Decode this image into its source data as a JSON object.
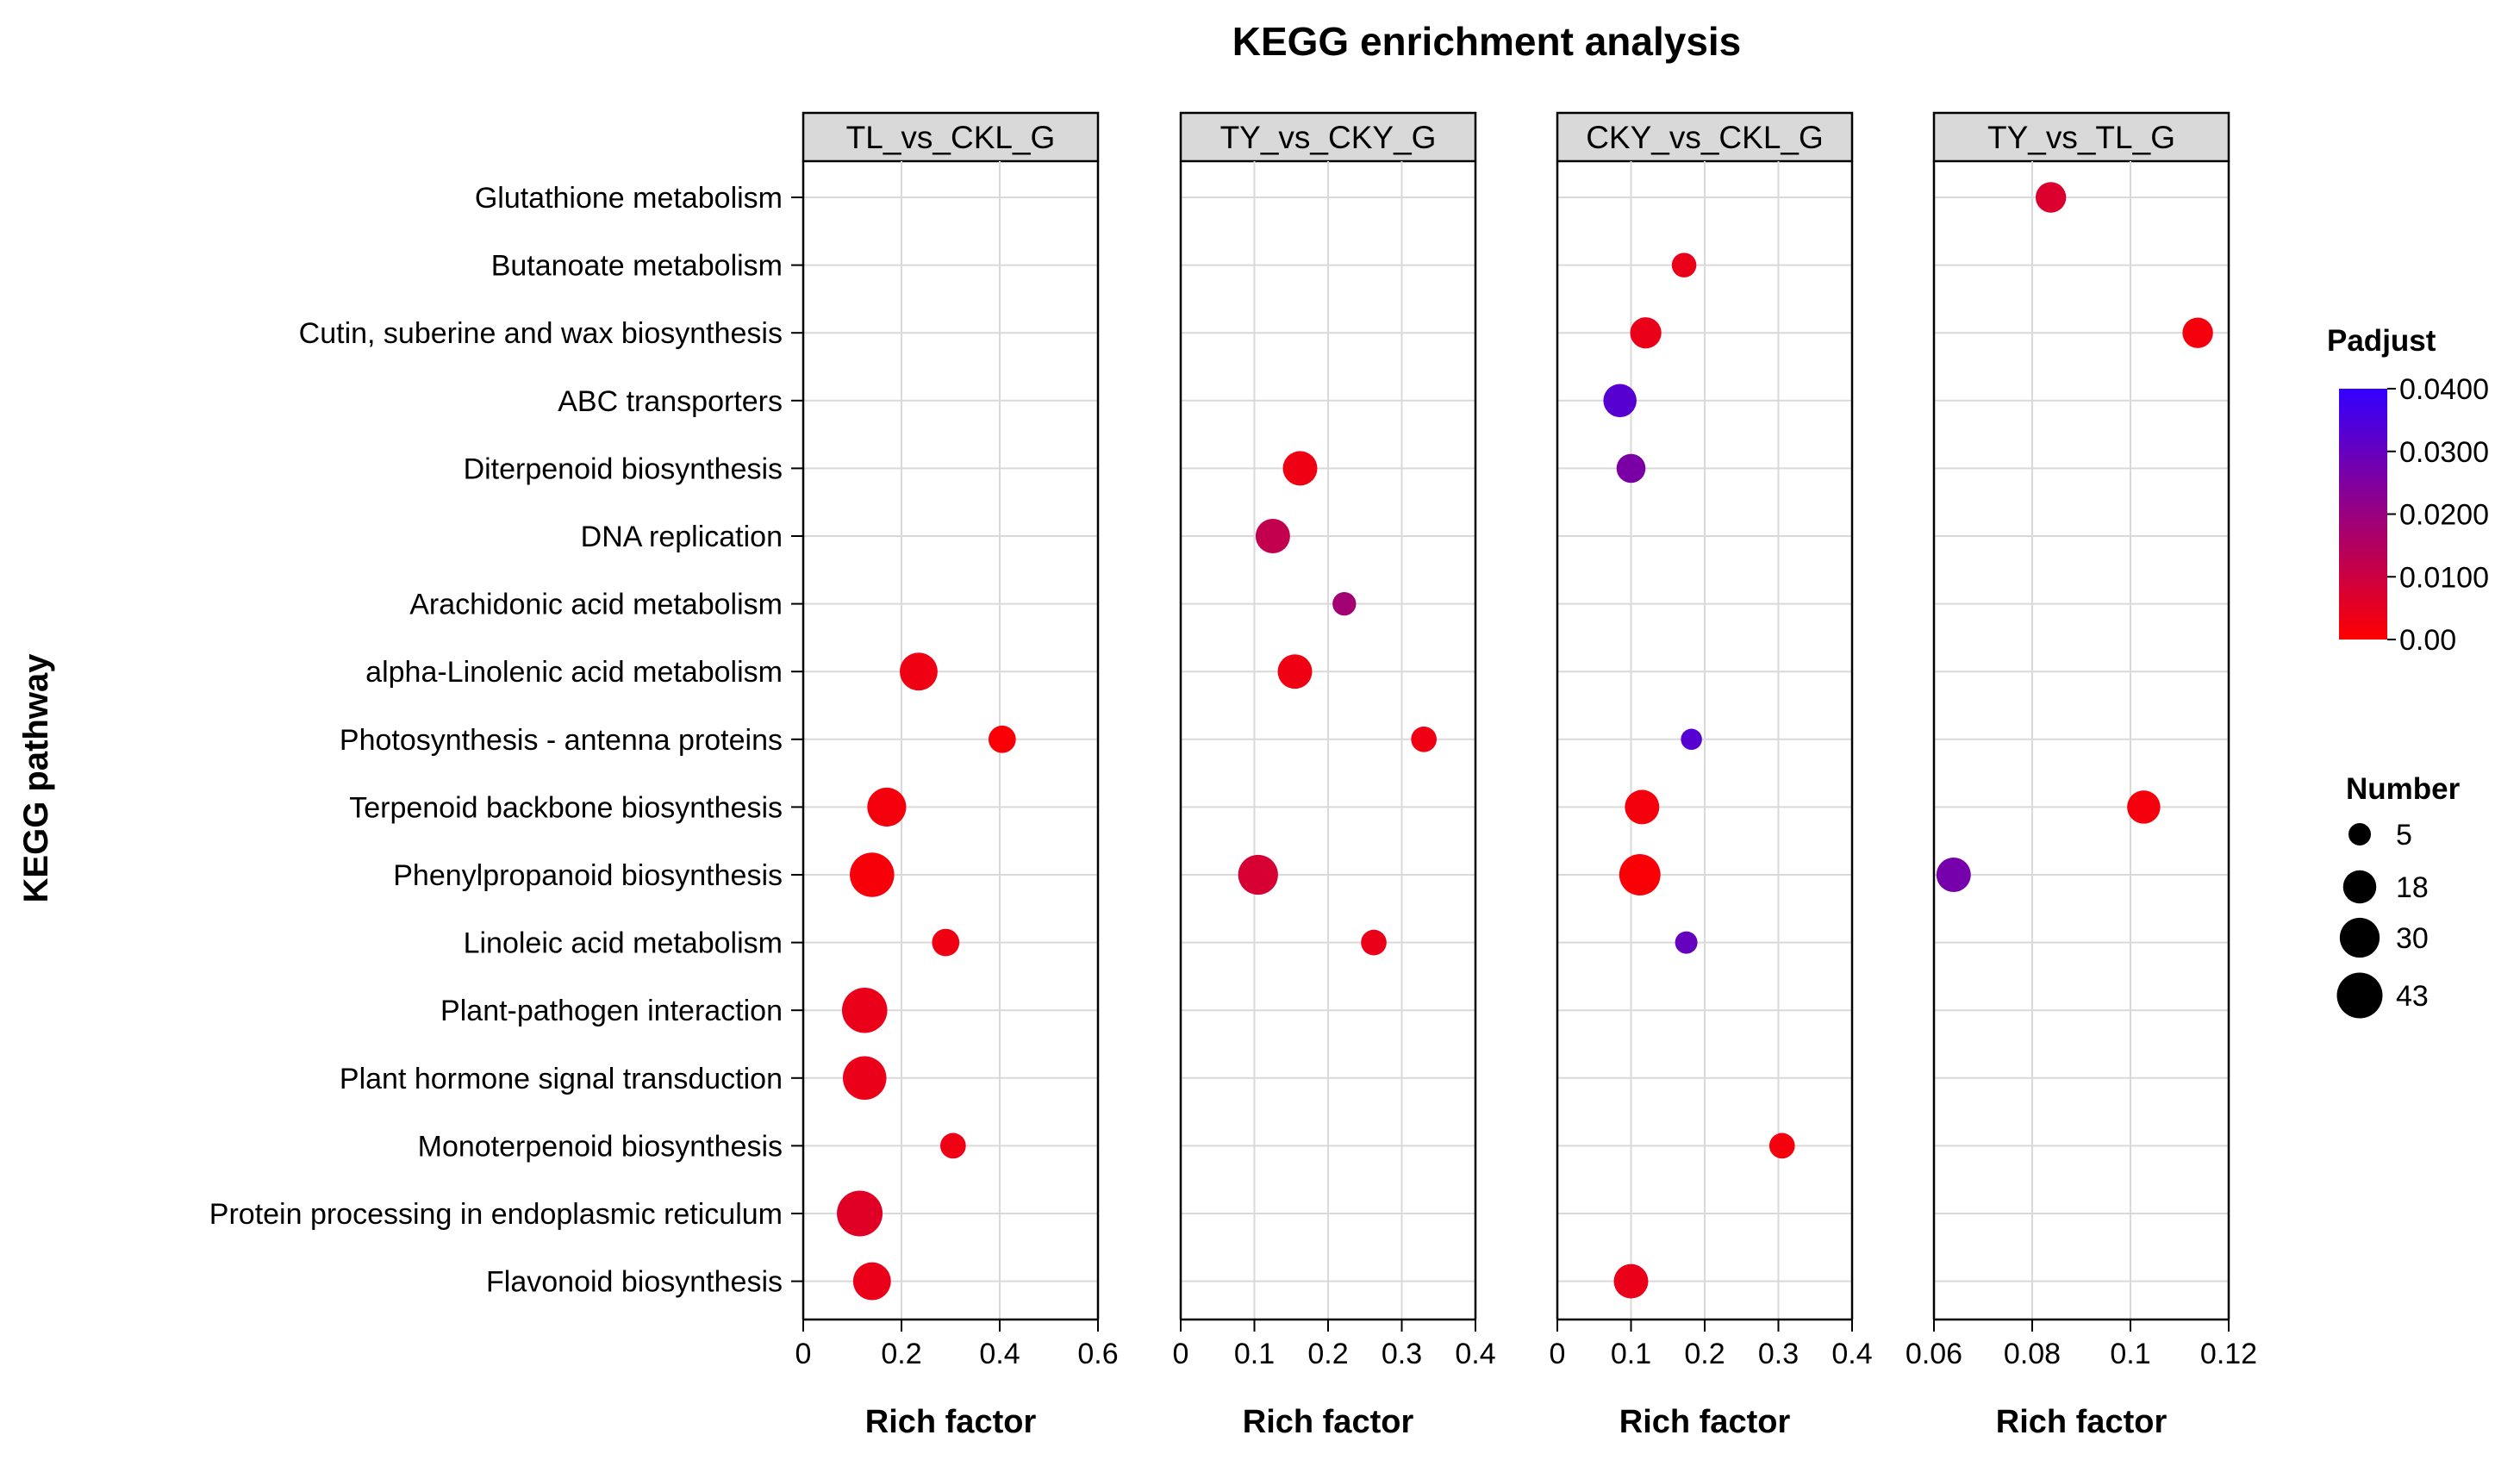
{
  "chart_data": {
    "type": "scatter",
    "title": "KEGG enrichment analysis",
    "ylabel": "KEGG pathway",
    "categories": [
      "Glutathione metabolism",
      "Butanoate metabolism",
      "Cutin, suberine and wax biosynthesis",
      "ABC transporters",
      "Diterpenoid biosynthesis",
      "DNA replication",
      "Arachidonic acid metabolism",
      "alpha-Linolenic acid metabolism",
      "Photosynthesis - antenna proteins",
      "Terpenoid backbone biosynthesis",
      "Phenylpropanoid biosynthesis",
      "Linoleic acid metabolism",
      "Plant-pathogen interaction",
      "Plant hormone signal transduction",
      "Monoterpenoid biosynthesis",
      "Protein processing in endoplasmic reticulum",
      "Flavonoid biosynthesis"
    ],
    "panels": [
      {
        "name": "TL_vs_CKL_G",
        "xlabel": "Rich factor",
        "xlim": [
          0,
          0.6
        ],
        "ticks": [
          0,
          0.2,
          0.4,
          0.6
        ],
        "tick_labels": [
          "0",
          "0.2",
          "0.4",
          "0.6"
        ],
        "points": [
          {
            "pathway": "alpha-Linolenic acid metabolism",
            "x": 0.235,
            "number": 26,
            "padjust": 0.003
          },
          {
            "pathway": "Photosynthesis - antenna proteins",
            "x": 0.405,
            "number": 10,
            "padjust": 0.001
          },
          {
            "pathway": "Terpenoid backbone biosynthesis",
            "x": 0.17,
            "number": 28,
            "padjust": 0.002
          },
          {
            "pathway": "Phenylpropanoid biosynthesis",
            "x": 0.14,
            "number": 40,
            "padjust": 0.0015
          },
          {
            "pathway": "Linoleic acid metabolism",
            "x": 0.29,
            "number": 10,
            "padjust": 0.003
          },
          {
            "pathway": "Plant-pathogen interaction",
            "x": 0.125,
            "number": 42,
            "padjust": 0.004
          },
          {
            "pathway": "Plant hormone signal transduction",
            "x": 0.125,
            "number": 38,
            "padjust": 0.004
          },
          {
            "pathway": "Monoterpenoid biosynthesis",
            "x": 0.305,
            "number": 8,
            "padjust": 0.003
          },
          {
            "pathway": "Protein processing in endoplasmic reticulum",
            "x": 0.115,
            "number": 43,
            "padjust": 0.006
          },
          {
            "pathway": "Flavonoid biosynthesis",
            "x": 0.14,
            "number": 26,
            "padjust": 0.004
          }
        ]
      },
      {
        "name": "TY_vs_CKY_G",
        "xlabel": "Rich factor",
        "xlim": [
          0,
          0.4
        ],
        "ticks": [
          0,
          0.1,
          0.2,
          0.3,
          0.4
        ],
        "tick_labels": [
          "0",
          "0.1",
          "0.2",
          "0.3",
          "0.4"
        ],
        "points": [
          {
            "pathway": "Diterpenoid biosynthesis",
            "x": 0.162,
            "number": 20,
            "padjust": 0.003
          },
          {
            "pathway": "DNA replication",
            "x": 0.125,
            "number": 20,
            "padjust": 0.012
          },
          {
            "pathway": "Arachidonic acid metabolism",
            "x": 0.222,
            "number": 6,
            "padjust": 0.018
          },
          {
            "pathway": "alpha-Linolenic acid metabolism",
            "x": 0.155,
            "number": 20,
            "padjust": 0.003
          },
          {
            "pathway": "Photosynthesis - antenna proteins",
            "x": 0.33,
            "number": 8,
            "padjust": 0.003
          },
          {
            "pathway": "Phenylpropanoid biosynthesis",
            "x": 0.105,
            "number": 30,
            "padjust": 0.008
          },
          {
            "pathway": "Linoleic acid metabolism",
            "x": 0.262,
            "number": 8,
            "padjust": 0.004
          }
        ]
      },
      {
        "name": "CKY_vs_CKL_G",
        "xlabel": "Rich factor",
        "xlim": [
          0,
          0.4
        ],
        "ticks": [
          0,
          0.1,
          0.2,
          0.3,
          0.4
        ],
        "tick_labels": [
          "0",
          "0.1",
          "0.2",
          "0.3",
          "0.4"
        ],
        "points": [
          {
            "pathway": "Butanoate metabolism",
            "x": 0.172,
            "number": 7,
            "padjust": 0.004
          },
          {
            "pathway": "Cutin, suberine and wax biosynthesis",
            "x": 0.12,
            "number": 15,
            "padjust": 0.004
          },
          {
            "pathway": "ABC transporters",
            "x": 0.085,
            "number": 18,
            "padjust": 0.033
          },
          {
            "pathway": "Diterpenoid biosynthesis",
            "x": 0.1,
            "number": 12,
            "padjust": 0.026
          },
          {
            "pathway": "Photosynthesis - antenna proteins",
            "x": 0.182,
            "number": 4,
            "padjust": 0.033
          },
          {
            "pathway": "Terpenoid backbone biosynthesis",
            "x": 0.115,
            "number": 20,
            "padjust": 0.002
          },
          {
            "pathway": "Phenylpropanoid biosynthesis",
            "x": 0.112,
            "number": 33,
            "padjust": 0.001
          },
          {
            "pathway": "Linoleic acid metabolism",
            "x": 0.175,
            "number": 5,
            "padjust": 0.03
          },
          {
            "pathway": "Monoterpenoid biosynthesis",
            "x": 0.305,
            "number": 8,
            "padjust": 0.002
          },
          {
            "pathway": "Flavonoid biosynthesis",
            "x": 0.1,
            "number": 20,
            "padjust": 0.004
          }
        ]
      },
      {
        "name": "TY_vs_TL_G",
        "xlabel": "Rich factor",
        "xlim": [
          0.06,
          0.12
        ],
        "ticks": [
          0.06,
          0.08,
          0.1,
          0.12
        ],
        "tick_labels": [
          "0.06",
          "0.08",
          "0.1",
          "0.12"
        ],
        "points": [
          {
            "pathway": "Glutathione metabolism",
            "x": 0.0838,
            "number": 14,
            "padjust": 0.007
          },
          {
            "pathway": "Cutin, suberine and wax biosynthesis",
            "x": 0.1137,
            "number": 14,
            "padjust": 0.002
          },
          {
            "pathway": "Terpenoid backbone biosynthesis",
            "x": 0.1027,
            "number": 18,
            "padjust": 0.002
          },
          {
            "pathway": "Phenylpropanoid biosynthesis",
            "x": 0.064,
            "number": 20,
            "padjust": 0.027
          }
        ]
      }
    ],
    "color_legend": {
      "title": "Padjust",
      "min": 0,
      "max": 0.04,
      "low_color": "#ff0000",
      "high_color": "#3300ff",
      "ticks": [
        0,
        0.01,
        0.02,
        0.03,
        0.04
      ],
      "tick_labels": [
        "0.00",
        "0.0100",
        "0.0200",
        "0.0300",
        "0.0400"
      ]
    },
    "size_legend": {
      "title": "Number",
      "values": [
        5,
        18,
        30,
        43
      ],
      "labels": [
        "5",
        "18",
        "30",
        "43"
      ]
    },
    "grid_color": "#d9d9d9",
    "strip_color": "#d9d9d9"
  }
}
